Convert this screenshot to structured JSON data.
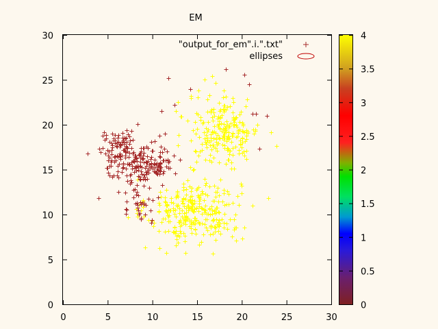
{
  "chart_data": {
    "type": "scatter",
    "title": "EM",
    "xlabel": "",
    "ylabel": "",
    "xlim": [
      0,
      30
    ],
    "ylim": [
      0,
      30
    ],
    "xticks": [
      0,
      5,
      10,
      15,
      20,
      25,
      30
    ],
    "yticks": [
      0,
      5,
      10,
      15,
      20,
      25,
      30
    ],
    "grid": false,
    "legend_position": "top-right",
    "series": [
      {
        "name": "\"output_for_em\".i.\".txt\"",
        "marker": "+",
        "color_mapped": true,
        "clusters": [
          {
            "label_value": 3.1,
            "color": "#a52a2a",
            "center": [
              6.5,
              16.8
            ],
            "spread": [
              1.3,
              1.3
            ],
            "count": 130
          },
          {
            "label_value": 3.1,
            "color": "#a52a2a",
            "center": [
              10.0,
              15.8
            ],
            "spread": [
              1.1,
              1.0
            ],
            "count": 110
          },
          {
            "label_value": 3.1,
            "color": "#a52a2a",
            "center": [
              8.6,
              11.8
            ],
            "spread": [
              1.1,
              1.4
            ],
            "count": 45
          },
          {
            "label_value": 4.0,
            "color": "#ffff00",
            "center": [
              14.6,
              10.4
            ],
            "spread": [
              2.6,
              1.8
            ],
            "count": 300
          },
          {
            "label_value": 4.0,
            "color": "#ffff00",
            "center": [
              18.0,
              19.4
            ],
            "spread": [
              2.0,
              2.0
            ],
            "count": 230
          }
        ],
        "points": [
          {
            "x": 4.0,
            "y": 11.8,
            "c": 3.1
          },
          {
            "x": 11.8,
            "y": 25.2,
            "c": 3.1
          },
          {
            "x": 14.2,
            "y": 24.0,
            "c": 3.1
          },
          {
            "x": 18.2,
            "y": 26.2,
            "c": 3.1
          },
          {
            "x": 20.3,
            "y": 25.6,
            "c": 3.1
          },
          {
            "x": 20.8,
            "y": 24.5,
            "c": 3.1
          },
          {
            "x": 22.0,
            "y": 17.3,
            "c": 3.1
          },
          {
            "x": 22.8,
            "y": 21.0,
            "c": 3.1
          },
          {
            "x": 21.2,
            "y": 21.2,
            "c": 3.1
          },
          {
            "x": 21.6,
            "y": 21.2,
            "c": 3.1
          },
          {
            "x": 12.5,
            "y": 22.2,
            "c": 3.1
          },
          {
            "x": 13.7,
            "y": 5.7,
            "c": 4.0
          },
          {
            "x": 9.2,
            "y": 6.3,
            "c": 4.0
          },
          {
            "x": 11.0,
            "y": 21.5,
            "c": 3.1
          },
          {
            "x": 10.8,
            "y": 18.8,
            "c": 3.1
          },
          {
            "x": 11.4,
            "y": 19.0,
            "c": 3.1
          }
        ]
      },
      {
        "name": "ellipses",
        "style": "ellipse",
        "color": "#c00000"
      }
    ],
    "colorbar": {
      "range": [
        0,
        4
      ],
      "ticks": [
        0,
        0.5,
        1,
        1.5,
        2,
        2.5,
        3,
        3.5,
        4
      ],
      "tick_labels": [
        "0",
        "0.5",
        "1",
        "1.5",
        "2",
        "2.5",
        "3",
        "3.5",
        "4"
      ],
      "stops": [
        {
          "v": 0.0,
          "color": "#7f2020"
        },
        {
          "v": 0.4,
          "color": "#6a1f6e"
        },
        {
          "v": 0.8,
          "color": "#2a1ad8"
        },
        {
          "v": 1.05,
          "color": "#0000ff"
        },
        {
          "v": 1.3,
          "color": "#009ad0"
        },
        {
          "v": 1.6,
          "color": "#00e060"
        },
        {
          "v": 1.9,
          "color": "#00e000"
        },
        {
          "v": 2.1,
          "color": "#80b000"
        },
        {
          "v": 2.4,
          "color": "#ff2020"
        },
        {
          "v": 2.8,
          "color": "#ff0000"
        },
        {
          "v": 3.2,
          "color": "#c84020"
        },
        {
          "v": 3.5,
          "color": "#d0a020"
        },
        {
          "v": 4.0,
          "color": "#ffff00"
        }
      ]
    },
    "legend_entries": [
      "\"output_for_em\".i.\".txt\"",
      "ellipses"
    ]
  }
}
